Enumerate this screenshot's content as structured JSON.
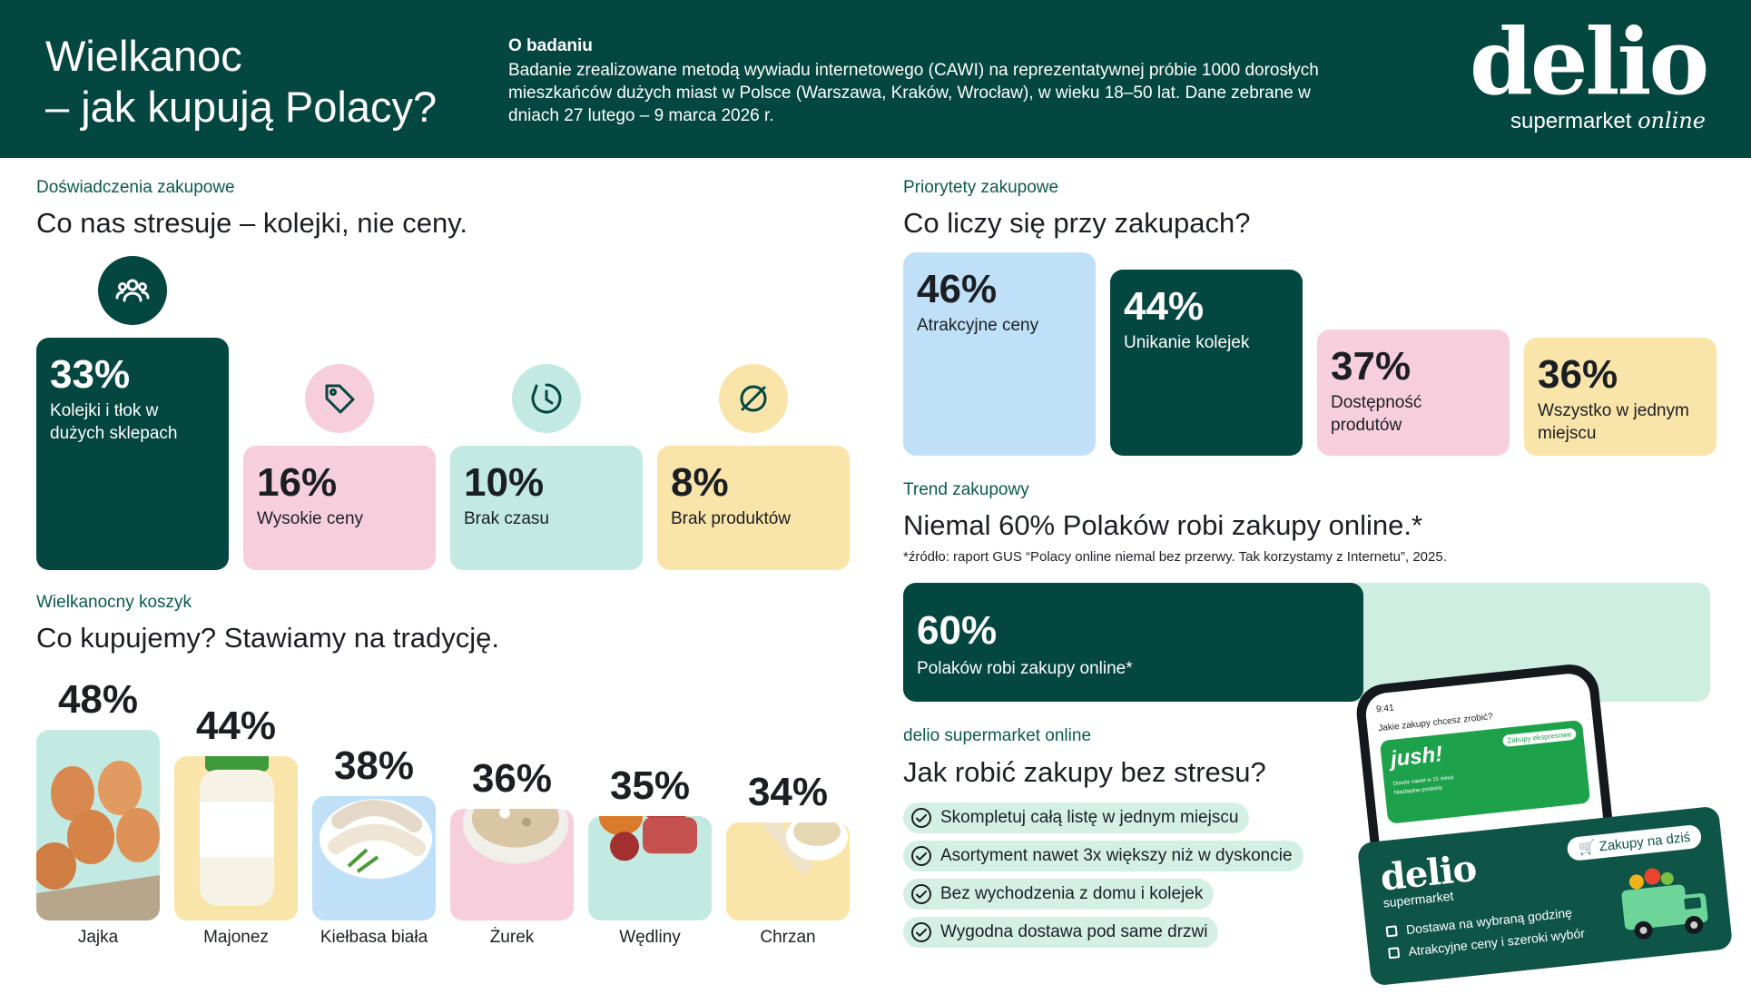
{
  "header": {
    "title_line1": "Wielkanoc",
    "title_line2": "– jak kupują Polacy?",
    "study_heading": "O badaniu",
    "study_text": "Badanie zrealizowane metodą wywiadu internetowego (CAWI) na reprezentatywnej próbie 1000 dorosłych mieszkańców dużych miast w Polsce (Warszawa, Kraków, Wrocław), w wieku 18–50 lat. Dane zebrane w dniach 27 lutego – 9 marca 2026 r.",
    "logo_word": "delio",
    "logo_sub": "supermarket",
    "logo_sub_italic": "online"
  },
  "stress": {
    "eyebrow": "Doświadczenia zakupowe",
    "title": "Co nas stresuje – kolejki, nie ceny."
  },
  "priorities": {
    "eyebrow": "Priorytety zakupowe",
    "title": "Co liczy się przy zakupach?"
  },
  "trend": {
    "eyebrow": "Trend zakupowy",
    "title": "Niemal 60% Polaków robi zakupy online.*",
    "note": "*źródło: raport GUS “Polacy online niemal bez przerwy. Tak korzystamy z Internetu”, 2025."
  },
  "tips": {
    "eyebrow": "delio supermarket online",
    "title": "Jak robić zakupy bez stresu?",
    "items": [
      "Skompletuj całą listę w jednym miejscu",
      "Asortyment nawet 3x większy niż w dyskoncie",
      "Bez wychodzenia z domu i kolejek",
      "Wygodna dostawa pod same drzwi"
    ]
  },
  "basket": {
    "eyebrow": "Wielkanocny koszyk",
    "title": "Co kupujemy? Stawiamy na tradycję."
  },
  "promo": {
    "phone_time": "9:41",
    "phone_question": "Jakie zakupy chcesz zrobić?",
    "phone_brand": "jush!",
    "phone_badge": "Zakupy ekspresowe",
    "phone_line1": "Dowóz nawet w 15 minut",
    "phone_line2": "Niezbędne produkty",
    "card_logo": "delio",
    "card_sub": "supermarket",
    "card_badge": "Zakupy na dziś",
    "card_line1": "Dostawa na wybraną godzinę",
    "card_line2": "Atrakcyjne ceny i szeroki wybór"
  },
  "colors": {
    "dark_green": "#044640",
    "pink": "#f7cfdc",
    "mint": "#c2eae2",
    "yellow": "#f9e4a9",
    "light_blue": "#bfe0f7",
    "pill_green": "#d4efe4"
  },
  "chart_data": [
    {
      "type": "bar",
      "title": "Co nas stresuje – kolejki, nie ceny.",
      "categories": [
        "Kolejki i tłok w dużych sklepach",
        "Wysokie ceny",
        "Brak czasu",
        "Brak produktów"
      ],
      "values": [
        33,
        16,
        10,
        8
      ],
      "value_labels": [
        "33%",
        "16%",
        "10%",
        "8%"
      ],
      "icons": [
        "people-icon",
        "price-tag-icon",
        "clock-icon",
        "unavailable-icon"
      ]
    },
    {
      "type": "bar",
      "title": "Co liczy się przy zakupach?",
      "categories": [
        "Atrakcyjne ceny",
        "Unikanie kolejek",
        "Dostępność produtów",
        "Wszystko w jednym miejscu"
      ],
      "values": [
        46,
        44,
        37,
        36
      ],
      "value_labels": [
        "46%",
        "44%",
        "37%",
        "36%"
      ]
    },
    {
      "type": "bar",
      "title": "Niemal 60% Polaków robi zakupy online.*",
      "categories": [
        "Polaków robi zakupy online*"
      ],
      "values": [
        60
      ],
      "value_labels": [
        "60%"
      ],
      "ylim": [
        0,
        100
      ]
    },
    {
      "type": "bar",
      "title": "Co kupujemy? Stawiamy na tradycję.",
      "categories": [
        "Jajka",
        "Majonez",
        "Kiełbasa biała",
        "Żurek",
        "Wędliny",
        "Chrzan"
      ],
      "values": [
        48,
        44,
        38,
        36,
        35,
        34
      ],
      "value_labels": [
        "48%",
        "44%",
        "38%",
        "36%",
        "35%",
        "34%"
      ]
    }
  ]
}
